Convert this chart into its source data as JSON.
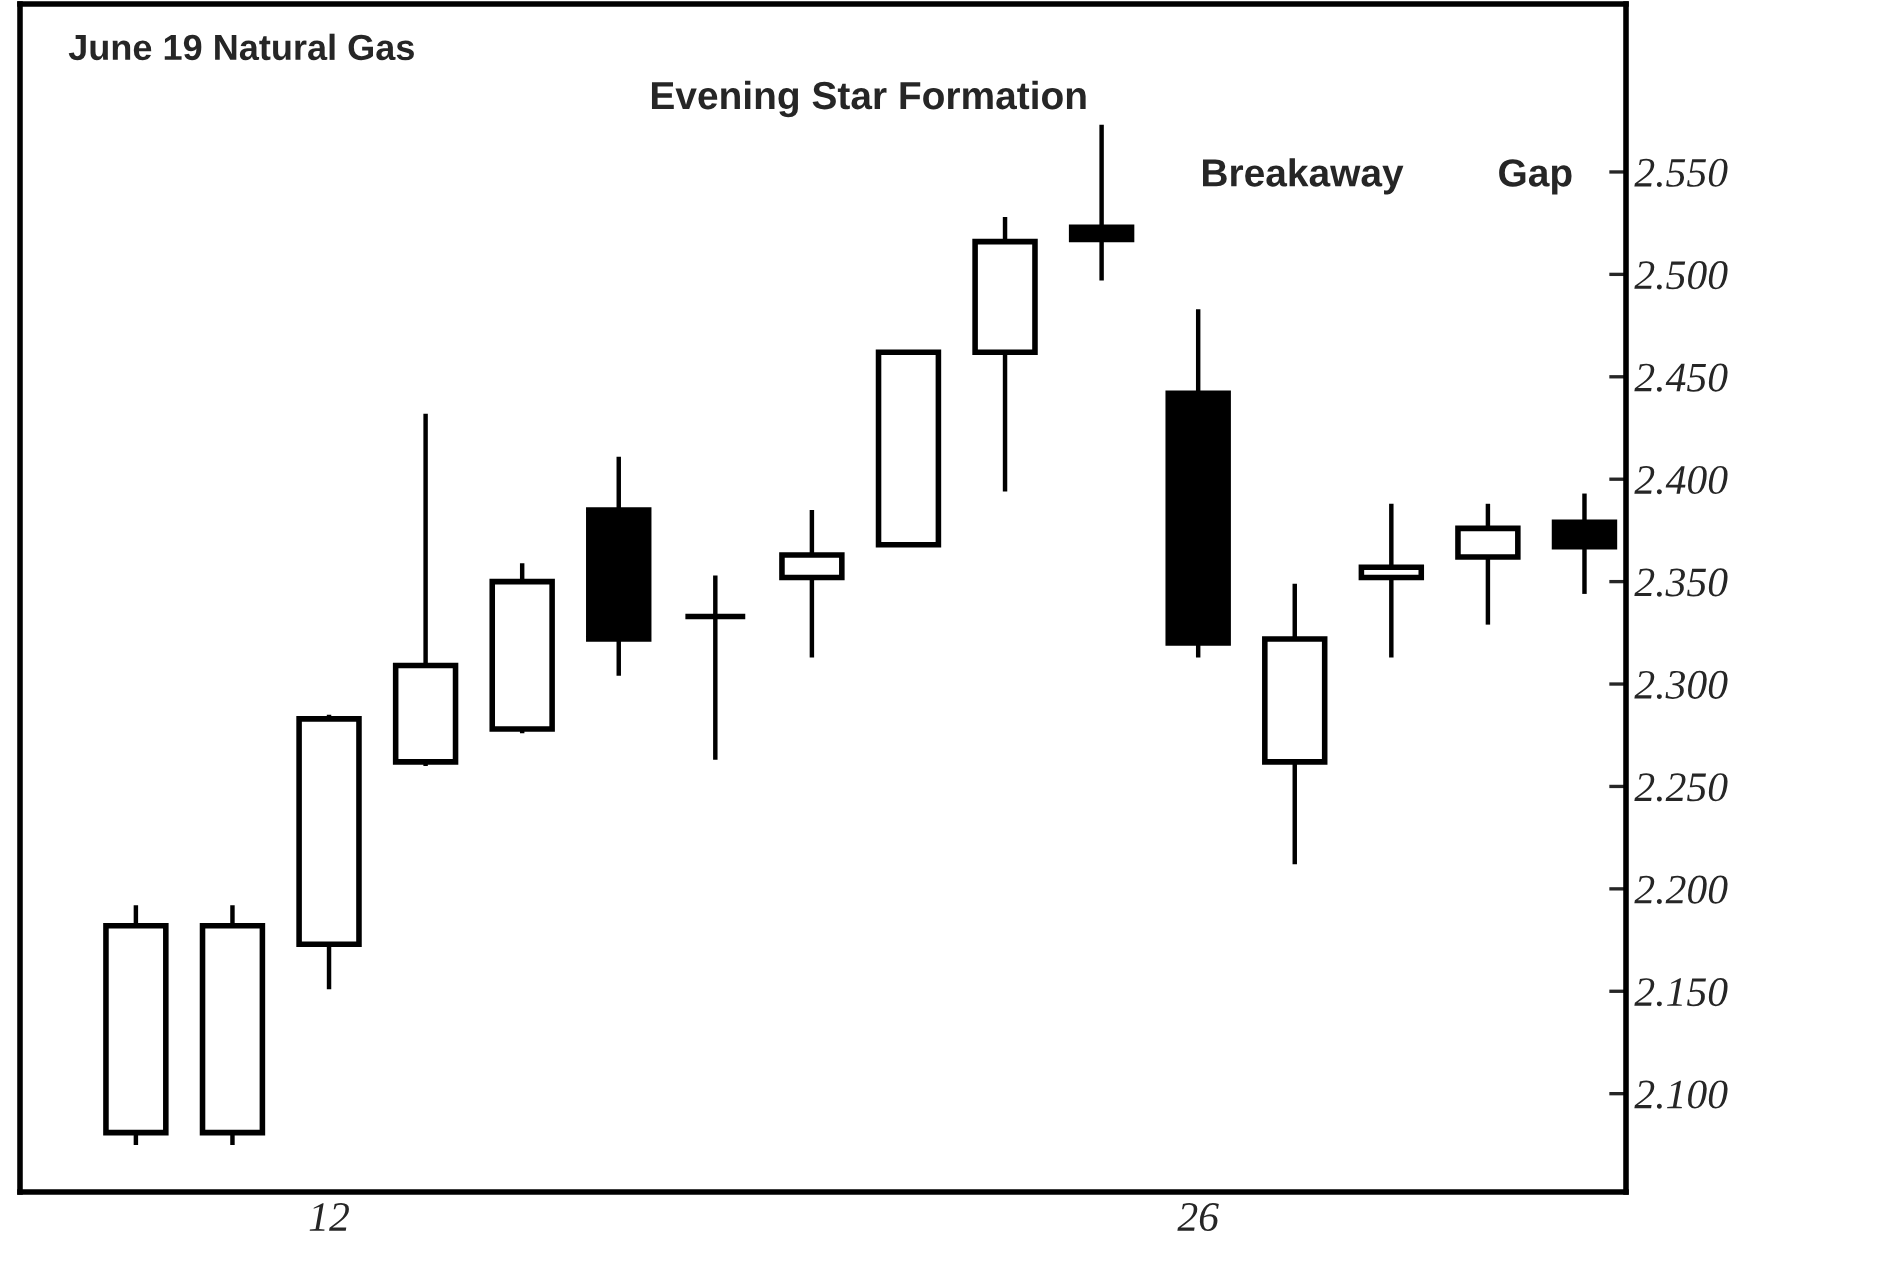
{
  "chart_data": {
    "type": "candlestick",
    "title": "June 19 Natural Gas",
    "categories": [
      null,
      null,
      "12",
      null,
      null,
      null,
      null,
      null,
      null,
      null,
      null,
      "26",
      null,
      null,
      null,
      null
    ],
    "ohlc": [
      [
        2.081,
        2.192,
        2.075,
        2.182
      ],
      [
        2.081,
        2.192,
        2.075,
        2.182
      ],
      [
        2.173,
        2.285,
        2.151,
        2.283
      ],
      [
        2.262,
        2.432,
        2.26,
        2.309
      ],
      [
        2.278,
        2.359,
        2.276,
        2.35
      ],
      [
        2.385,
        2.411,
        2.304,
        2.322
      ],
      [
        2.333,
        2.353,
        2.263,
        2.333
      ],
      [
        2.352,
        2.385,
        2.313,
        2.363
      ],
      [
        2.368,
        2.462,
        2.368,
        2.462
      ],
      [
        2.462,
        2.528,
        2.394,
        2.516
      ],
      [
        2.523,
        2.573,
        2.497,
        2.517
      ],
      [
        2.442,
        2.483,
        2.313,
        2.32
      ],
      [
        2.262,
        2.349,
        2.212,
        2.322
      ],
      [
        2.352,
        2.388,
        2.313,
        2.357
      ],
      [
        2.362,
        2.388,
        2.329,
        2.376
      ],
      [
        2.379,
        2.393,
        2.344,
        2.367
      ]
    ],
    "ylim": [
      2.052,
      2.632
    ],
    "yticks": [
      {
        "value": 2.1,
        "label": "2.100"
      },
      {
        "value": 2.15,
        "label": "2.150"
      },
      {
        "value": 2.2,
        "label": "2.200"
      },
      {
        "value": 2.25,
        "label": "2.250"
      },
      {
        "value": 2.3,
        "label": "2.300"
      },
      {
        "value": 2.35,
        "label": "2.350"
      },
      {
        "value": 2.4,
        "label": "2.400"
      },
      {
        "value": 2.45,
        "label": "2.450"
      },
      {
        "value": 2.5,
        "label": "2.500"
      },
      {
        "value": 2.55,
        "label": "2.550"
      }
    ],
    "annotations": [
      "Evening Star Formation",
      "Breakaway",
      "Gap"
    ],
    "grid": false
  }
}
